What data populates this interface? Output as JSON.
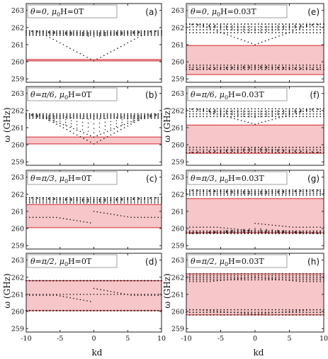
{
  "ylabel": "ω (GHz)",
  "xlabel": "kd",
  "colors": {
    "band": "#f7c6c8",
    "edge": "#d0272c",
    "dots": "#111111",
    "frame": "#222222"
  },
  "chart_data": [
    {
      "type": "scatter",
      "panel_label": "(a)",
      "title_theta": "θ=0,",
      "title_mu": "μ",
      "title_sub": "0",
      "title_field": "H=0T",
      "xlim": [
        -10,
        10
      ],
      "ylim": [
        258.8,
        263.4
      ],
      "xticks": [
        "-10",
        "-5",
        "0",
        "5",
        "10"
      ],
      "yticks": [
        "259",
        "260",
        "261",
        "262",
        "263"
      ],
      "band": [
        260.05,
        260.13
      ],
      "bulk_upper": [
        261.4,
        261.8
      ],
      "bulk_lower": null,
      "dense_top": [
        261.55,
        261.8
      ],
      "dense_bottom": null,
      "edge_states": [
        {
          "at": 260.05,
          "to": 261.8,
          "shape": "v"
        }
      ]
    },
    {
      "type": "scatter",
      "panel_label": "(b)",
      "title_theta": "θ=π/6,",
      "title_mu": "μ",
      "title_sub": "0",
      "title_field": "H=0T",
      "xlim": [
        -10,
        10
      ],
      "ylim": [
        258.8,
        263.4
      ],
      "xticks": [
        "-10",
        "-5",
        "0",
        "5",
        "10"
      ],
      "yticks": [
        "259",
        "260",
        "261",
        "262",
        "263"
      ],
      "band": [
        260.05,
        260.45
      ],
      "bulk_upper": [
        260.5,
        261.8
      ],
      "bulk_lower": null,
      "dense_top": [
        261.55,
        261.8
      ],
      "dense_bottom": null,
      "edge_states": [
        {
          "at": 260.05,
          "to": 261.8,
          "shape": "v"
        },
        {
          "at": 260.45,
          "to": 261.8,
          "shape": "v"
        }
      ]
    },
    {
      "type": "scatter",
      "panel_label": "(c)",
      "title_theta": "θ=π/3,",
      "title_mu": "μ",
      "title_sub": "0",
      "title_field": "H=0T",
      "xlim": [
        -10,
        10
      ],
      "ylim": [
        258.8,
        263.4
      ],
      "xticks": [
        "-10",
        "-5",
        "0",
        "5",
        "10"
      ],
      "yticks": [
        "259",
        "260",
        "261",
        "262",
        "263"
      ],
      "band": [
        260.05,
        261.4
      ],
      "bulk_upper": [
        261.5,
        261.8
      ],
      "bulk_lower": null,
      "dense_top": [
        261.5,
        261.8
      ],
      "dense_bottom": null,
      "edge_states": [
        {
          "at": 260.3,
          "to": 261.0,
          "shape": "x"
        }
      ]
    },
    {
      "type": "scatter",
      "panel_label": "(d)",
      "title_theta": "θ=π/2,",
      "title_mu": "μ",
      "title_sub": "0",
      "title_field": "H=0T",
      "xlim": [
        -10,
        10
      ],
      "ylim": [
        258.8,
        263.4
      ],
      "xticks": [
        "-10",
        "-5",
        "0",
        "5",
        "10"
      ],
      "yticks": [
        "259",
        "260",
        "261",
        "262",
        "263"
      ],
      "band": [
        260.05,
        261.8
      ],
      "bulk_upper": null,
      "bulk_lower": null,
      "dense_top": [
        261.8,
        261.8
      ],
      "dense_bottom": [
        260.05,
        260.05
      ],
      "edge_states": [
        {
          "at": 260.55,
          "to": 261.35,
          "shape": "x"
        },
        {
          "at": 261.0,
          "to": 261.0,
          "shape": "flat"
        }
      ]
    },
    {
      "type": "scatter",
      "panel_label": "(e)",
      "title_theta": "θ=0,",
      "title_mu": "μ",
      "title_sub": "0",
      "title_field": "H=0.03T",
      "xlim": [
        -10,
        10
      ],
      "ylim": [
        258.8,
        263.4
      ],
      "xticks": [
        "-10",
        "-5",
        "0",
        "5",
        "10"
      ],
      "yticks": [
        "259",
        "260",
        "261",
        "262",
        "263"
      ],
      "band": [
        259.25,
        260.95
      ],
      "bulk_upper": [
        261.6,
        262.2
      ],
      "bulk_lower": [
        259.55,
        259.8
      ],
      "dense_top": [
        261.7,
        262.2
      ],
      "dense_bottom": [
        259.55,
        259.8
      ],
      "edge_states": [
        {
          "at": 261.0,
          "to": 262.2,
          "shape": "v"
        }
      ]
    },
    {
      "type": "scatter",
      "panel_label": "(f)",
      "title_theta": "θ=π/6,",
      "title_mu": "μ",
      "title_sub": "0",
      "title_field": "H=0.03T",
      "xlim": [
        -10,
        10
      ],
      "ylim": [
        258.8,
        263.4
      ],
      "xticks": [
        "-10",
        "-5",
        "0",
        "5",
        "10"
      ],
      "yticks": [
        "259",
        "260",
        "261",
        "262",
        "263"
      ],
      "band": [
        259.5,
        261.15
      ],
      "bulk_upper": [
        261.5,
        262.1
      ],
      "bulk_lower": [
        259.55,
        259.85
      ],
      "dense_top": [
        261.65,
        262.1
      ],
      "dense_bottom": [
        259.55,
        259.85
      ],
      "edge_states": [
        {
          "at": 261.2,
          "to": 262.1,
          "shape": "v"
        }
      ]
    },
    {
      "type": "scatter",
      "panel_label": "(g)",
      "title_theta": "θ=π/3,",
      "title_mu": "μ",
      "title_sub": "0",
      "title_field": "H=0.03T",
      "xlim": [
        -10,
        10
      ],
      "ylim": [
        258.8,
        263.4
      ],
      "xticks": [
        "-10",
        "-5",
        "0",
        "5",
        "10"
      ],
      "yticks": [
        "259",
        "260",
        "261",
        "262",
        "263"
      ],
      "band": [
        259.75,
        261.75
      ],
      "bulk_upper": [
        261.95,
        262.25
      ],
      "bulk_lower": [
        259.7,
        260.05
      ],
      "dense_top": [
        261.95,
        262.25
      ],
      "dense_bottom": [
        259.7,
        259.85
      ],
      "edge_states": [
        {
          "at": 259.85,
          "to": 260.3,
          "shape": "x"
        }
      ]
    },
    {
      "type": "scatter",
      "panel_label": "(h)",
      "title_theta": "θ=π/2,",
      "title_mu": "μ",
      "title_sub": "0",
      "title_field": "H=0.03T",
      "xlim": [
        -10,
        10
      ],
      "ylim": [
        258.8,
        263.4
      ],
      "xticks": [
        "-10",
        "-5",
        "0",
        "5",
        "10"
      ],
      "yticks": [
        "259",
        "260",
        "261",
        "262",
        "263"
      ],
      "band": [
        259.8,
        262.2
      ],
      "bulk_upper": null,
      "bulk_lower": null,
      "dense_top": [
        261.85,
        262.2
      ],
      "dense_bottom": [
        259.8,
        260.1
      ],
      "edge_states": [
        {
          "at": 261.75,
          "to": 262.0,
          "shape": "^"
        },
        {
          "at": 259.85,
          "to": 260.1,
          "shape": "v"
        }
      ]
    }
  ]
}
